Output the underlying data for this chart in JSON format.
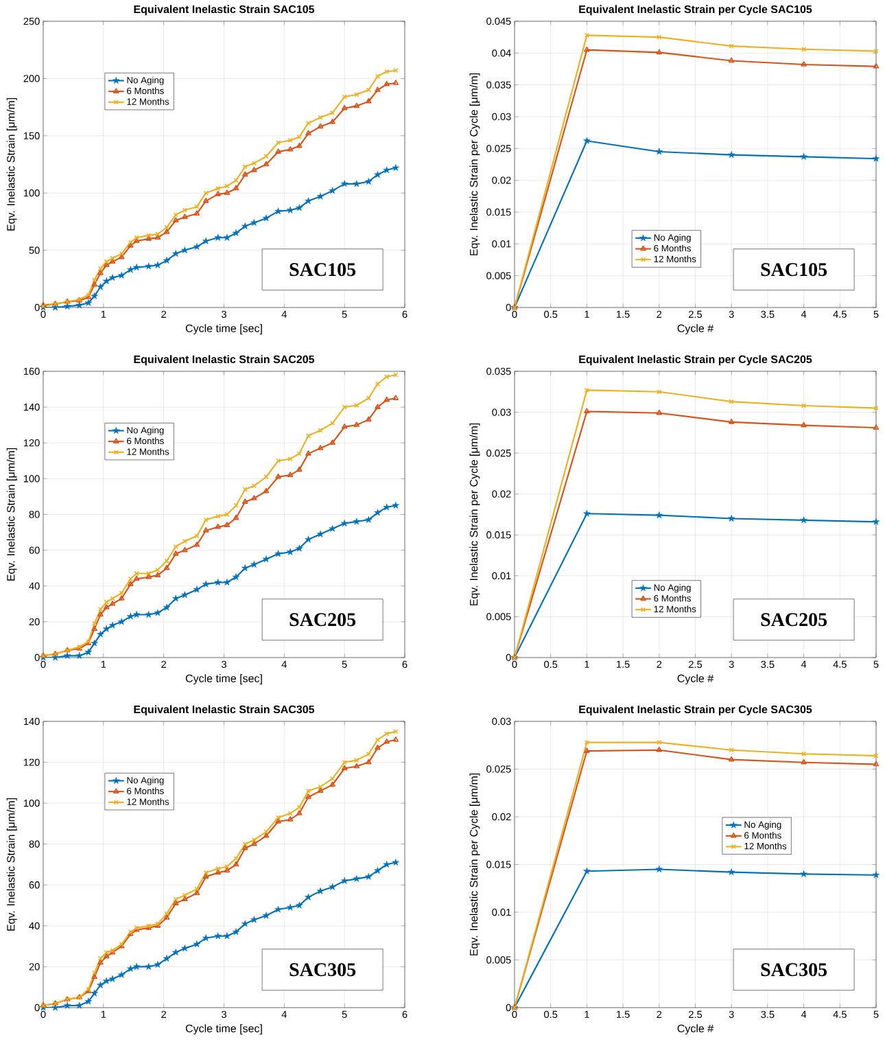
{
  "chart_data": [
    {
      "type": "line",
      "title": "Equivalent Inelastic Strain SAC105",
      "xlabel": "Cycle time [sec]",
      "ylabel": "Eqv. Inelastic Strain [μm/m]",
      "annotations": [
        "SAC105"
      ],
      "x": [
        0,
        0.2,
        0.4,
        0.6,
        0.75,
        0.85,
        0.95,
        1.05,
        1.15,
        1.3,
        1.45,
        1.55,
        1.75,
        1.9,
        2.05,
        2.2,
        2.35,
        2.55,
        2.7,
        2.9,
        3.05,
        3.2,
        3.35,
        3.5,
        3.7,
        3.9,
        4.1,
        4.25,
        4.4,
        4.6,
        4.8,
        5.0,
        5.2,
        5.4,
        5.55,
        5.7,
        5.85
      ],
      "xlim": [
        0,
        6
      ],
      "xticks": [
        0,
        1,
        2,
        3,
        4,
        5,
        6
      ],
      "ylim": [
        0,
        250
      ],
      "yticks": [
        0,
        50,
        100,
        150,
        200,
        250
      ],
      "grid": true,
      "legend": "top left",
      "series": [
        {
          "name": "No Aging",
          "color": "#0072bd",
          "marker": "star",
          "values": [
            0,
            0,
            1,
            2,
            4,
            10,
            18,
            23,
            26,
            28,
            33,
            35,
            36,
            37,
            41,
            47,
            50,
            53,
            58,
            61,
            61,
            65,
            71,
            74,
            78,
            84,
            85,
            87,
            93,
            97,
            102,
            108,
            108,
            110,
            116,
            120,
            122
          ]
        },
        {
          "name": "6 Months",
          "color": "#d95319",
          "marker": "triangle",
          "values": [
            2,
            3,
            5,
            6,
            9,
            20,
            30,
            37,
            40,
            44,
            54,
            58,
            60,
            61,
            66,
            76,
            79,
            82,
            93,
            99,
            100,
            104,
            116,
            120,
            125,
            136,
            138,
            141,
            152,
            158,
            162,
            174,
            176,
            180,
            190,
            195,
            196
          ]
        },
        {
          "name": "12 Months",
          "color": "#edb120",
          "marker": "cross",
          "values": [
            1,
            3,
            5,
            7,
            11,
            24,
            34,
            40,
            43,
            47,
            57,
            61,
            63,
            64,
            70,
            81,
            85,
            88,
            100,
            104,
            106,
            111,
            123,
            126,
            132,
            144,
            146,
            149,
            161,
            166,
            170,
            184,
            186,
            190,
            202,
            206,
            207
          ]
        }
      ]
    },
    {
      "type": "line",
      "title": "Equivalent Inelastic Strain per Cycle SAC105",
      "xlabel": "Cycle #",
      "ylabel": "Eqv. Inelastic Strain per Cycle [μm/m]",
      "annotations": [
        "SAC105"
      ],
      "x": [
        0,
        1,
        2,
        3,
        4,
        5
      ],
      "xlim": [
        0,
        5
      ],
      "xticks": [
        0,
        0.5,
        1,
        1.5,
        2,
        2.5,
        3,
        3.5,
        4,
        4.5,
        5
      ],
      "ylim": [
        0,
        0.045
      ],
      "yticks": [
        0,
        0.005,
        0.01,
        0.015,
        0.02,
        0.025,
        0.03,
        0.035,
        0.04,
        0.045
      ],
      "grid": true,
      "legend": "bottom",
      "series": [
        {
          "name": "No Aging",
          "color": "#0072bd",
          "marker": "star",
          "values": [
            0,
            0.0262,
            0.0245,
            0.024,
            0.0237,
            0.0234
          ]
        },
        {
          "name": "6 Months",
          "color": "#d95319",
          "marker": "triangle",
          "values": [
            0,
            0.0405,
            0.0401,
            0.0388,
            0.0382,
            0.0379
          ]
        },
        {
          "name": "12 Months",
          "color": "#edb120",
          "marker": "cross",
          "values": [
            0,
            0.0428,
            0.0425,
            0.0411,
            0.0406,
            0.0403
          ]
        }
      ]
    },
    {
      "type": "line",
      "title": "Equivalent Inelastic Strain SAC205",
      "xlabel": "Cycle time [sec]",
      "ylabel": "Eqv. Inelastic Strain [μm/m]",
      "annotations": [
        "SAC205"
      ],
      "x": [
        0,
        0.2,
        0.4,
        0.6,
        0.75,
        0.85,
        0.95,
        1.05,
        1.15,
        1.3,
        1.45,
        1.55,
        1.75,
        1.9,
        2.05,
        2.2,
        2.35,
        2.55,
        2.7,
        2.9,
        3.05,
        3.2,
        3.35,
        3.5,
        3.7,
        3.9,
        4.1,
        4.25,
        4.4,
        4.6,
        4.8,
        5.0,
        5.2,
        5.4,
        5.55,
        5.7,
        5.85
      ],
      "xlim": [
        0,
        6
      ],
      "xticks": [
        0,
        1,
        2,
        3,
        4,
        5,
        6
      ],
      "ylim": [
        0,
        160
      ],
      "yticks": [
        0,
        20,
        40,
        60,
        80,
        100,
        120,
        140,
        160
      ],
      "grid": true,
      "legend": "top left",
      "series": [
        {
          "name": "No Aging",
          "color": "#0072bd",
          "marker": "star",
          "values": [
            0,
            0,
            1,
            1,
            3,
            8,
            13,
            16,
            18,
            20,
            23,
            24,
            24,
            25,
            28,
            33,
            35,
            38,
            41,
            42,
            42,
            45,
            50,
            52,
            55,
            58,
            59,
            61,
            66,
            69,
            72,
            75,
            76,
            77,
            81,
            84,
            85
          ]
        },
        {
          "name": "6 Months",
          "color": "#d95319",
          "marker": "triangle",
          "values": [
            1,
            2,
            4,
            5,
            8,
            16,
            24,
            28,
            30,
            33,
            41,
            44,
            45,
            46,
            50,
            58,
            60,
            63,
            71,
            73,
            74,
            78,
            87,
            89,
            93,
            101,
            102,
            105,
            114,
            117,
            120,
            129,
            130,
            133,
            140,
            144,
            145
          ]
        },
        {
          "name": "12 Months",
          "color": "#edb120",
          "marker": "cross",
          "values": [
            1,
            2,
            4,
            6,
            9,
            19,
            27,
            31,
            33,
            36,
            44,
            47,
            47,
            49,
            54,
            62,
            65,
            68,
            77,
            79,
            80,
            85,
            94,
            96,
            101,
            110,
            111,
            114,
            124,
            127,
            131,
            140,
            141,
            145,
            153,
            157,
            158
          ]
        }
      ]
    },
    {
      "type": "line",
      "title": "Equivalent Inelastic Strain per Cycle SAC205",
      "xlabel": "Cycle #",
      "ylabel": "Eqv. Inelastic Strain per Cycle [μm/m]",
      "annotations": [
        "SAC205"
      ],
      "x": [
        0,
        1,
        2,
        3,
        4,
        5
      ],
      "xlim": [
        0,
        5
      ],
      "xticks": [
        0,
        0.5,
        1,
        1.5,
        2,
        2.5,
        3,
        3.5,
        4,
        4.5,
        5
      ],
      "ylim": [
        0,
        0.035
      ],
      "yticks": [
        0,
        0.005,
        0.01,
        0.015,
        0.02,
        0.025,
        0.03,
        0.035
      ],
      "grid": true,
      "legend": "bottom",
      "series": [
        {
          "name": "No Aging",
          "color": "#0072bd",
          "marker": "star",
          "values": [
            0,
            0.0176,
            0.0174,
            0.017,
            0.0168,
            0.0166
          ]
        },
        {
          "name": "6 Months",
          "color": "#d95319",
          "marker": "triangle",
          "values": [
            0,
            0.0301,
            0.0299,
            0.0288,
            0.0284,
            0.0281
          ]
        },
        {
          "name": "12 Months",
          "color": "#edb120",
          "marker": "cross",
          "values": [
            0,
            0.0327,
            0.0325,
            0.0313,
            0.0308,
            0.0305
          ]
        }
      ]
    },
    {
      "type": "line",
      "title": "Equivalent Inelastic Strain SAC305",
      "xlabel": "Cycle time [sec]",
      "ylabel": "Eqv. Inelastic Strain [μm/m]",
      "annotations": [
        "SAC305"
      ],
      "x": [
        0,
        0.2,
        0.4,
        0.6,
        0.75,
        0.85,
        0.95,
        1.05,
        1.15,
        1.3,
        1.45,
        1.55,
        1.75,
        1.9,
        2.05,
        2.2,
        2.35,
        2.55,
        2.7,
        2.9,
        3.05,
        3.2,
        3.35,
        3.5,
        3.7,
        3.9,
        4.1,
        4.25,
        4.4,
        4.6,
        4.8,
        5.0,
        5.2,
        5.4,
        5.55,
        5.7,
        5.85
      ],
      "xlim": [
        0,
        6
      ],
      "xticks": [
        0,
        1,
        2,
        3,
        4,
        5,
        6
      ],
      "ylim": [
        0,
        140
      ],
      "yticks": [
        0,
        20,
        40,
        60,
        80,
        100,
        120,
        140
      ],
      "grid": true,
      "legend": "top left",
      "series": [
        {
          "name": "No Aging",
          "color": "#0072bd",
          "marker": "star",
          "values": [
            0,
            0,
            1,
            1,
            3,
            7,
            11,
            13,
            14,
            16,
            19,
            20,
            20,
            21,
            24,
            27,
            29,
            31,
            34,
            35,
            35,
            37,
            41,
            43,
            45,
            48,
            49,
            50,
            54,
            57,
            59,
            62,
            63,
            64,
            67,
            70,
            71
          ]
        },
        {
          "name": "6 Months",
          "color": "#d95319",
          "marker": "triangle",
          "values": [
            1,
            2,
            4,
            5,
            8,
            15,
            22,
            25,
            27,
            30,
            36,
            38,
            39,
            40,
            44,
            51,
            53,
            56,
            64,
            66,
            67,
            70,
            78,
            80,
            84,
            91,
            92,
            95,
            103,
            106,
            109,
            117,
            118,
            120,
            127,
            130,
            131
          ]
        },
        {
          "name": "12 Months",
          "color": "#edb120",
          "marker": "cross",
          "values": [
            1,
            2,
            4,
            5,
            9,
            17,
            24,
            27,
            28,
            31,
            37,
            39,
            40,
            41,
            46,
            53,
            55,
            58,
            66,
            68,
            69,
            73,
            80,
            82,
            86,
            93,
            95,
            98,
            106,
            108,
            112,
            120,
            121,
            124,
            131,
            134,
            135
          ]
        }
      ]
    },
    {
      "type": "line",
      "title": "Equivalent Inelastic Strain per Cycle SAC305",
      "xlabel": "Cycle #",
      "ylabel": "Eqv. Inelastic Strain per Cycle [μm/m]",
      "annotations": [
        "SAC305"
      ],
      "x": [
        0,
        1,
        2,
        3,
        4,
        5
      ],
      "xlim": [
        0,
        5
      ],
      "xticks": [
        0,
        0.5,
        1,
        1.5,
        2,
        2.5,
        3,
        3.5,
        4,
        4.5,
        5
      ],
      "ylim": [
        0,
        0.03
      ],
      "yticks": [
        0,
        0.005,
        0.01,
        0.015,
        0.02,
        0.025,
        0.03
      ],
      "grid": true,
      "legend": "center",
      "series": [
        {
          "name": "No Aging",
          "color": "#0072bd",
          "marker": "star",
          "values": [
            0,
            0.0143,
            0.0145,
            0.0142,
            0.014,
            0.0139
          ]
        },
        {
          "name": "6 Months",
          "color": "#d95319",
          "marker": "triangle",
          "values": [
            0,
            0.0269,
            0.027,
            0.026,
            0.0257,
            0.0255
          ]
        },
        {
          "name": "12 Months",
          "color": "#edb120",
          "marker": "cross",
          "values": [
            0,
            0.0278,
            0.0278,
            0.027,
            0.0266,
            0.0264
          ]
        }
      ]
    }
  ]
}
